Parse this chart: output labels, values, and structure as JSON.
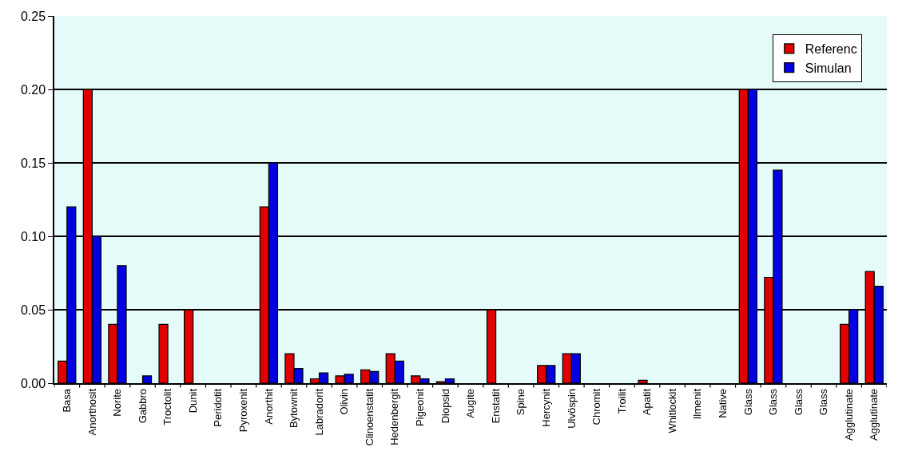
{
  "chart_data": {
    "type": "bar",
    "categories": [
      "Basa",
      "Anorthosit",
      "Norite",
      "Gabbro",
      "Troctolit",
      "Dunit",
      "Peridotit",
      "Pyroxenit",
      "Anorthit",
      "Bytownit",
      "Labradorit",
      "Olivin",
      "Clinoenstatit",
      "Hedenbergit",
      "Pigeonit",
      "Diopsid",
      "Augite",
      "Enstatit",
      "Spine",
      "Hercynit",
      "Ulvöspin",
      "Chromit",
      "Troilit",
      "Apatit",
      "Whitlockit",
      "Ilmenit",
      "Native",
      "Glass",
      "Glass",
      "Glass",
      "Glass",
      "Agglutinate",
      "Agglutinate"
    ],
    "series": [
      {
        "name": "Referenc",
        "color": "#e00000",
        "values": [
          0.015,
          0.2,
          0.04,
          null,
          0.04,
          0.05,
          null,
          null,
          0.12,
          0.02,
          0.003,
          0.005,
          0.009,
          0.02,
          0.005,
          0.001,
          null,
          0.05,
          null,
          0.012,
          0.02,
          null,
          null,
          0.002,
          null,
          null,
          null,
          0.2,
          0.072,
          null,
          null,
          0.04,
          0.076
        ]
      },
      {
        "name": "Simulan",
        "color": "#0000e0",
        "values": [
          0.12,
          0.1,
          0.08,
          0.005,
          null,
          null,
          null,
          null,
          0.15,
          0.01,
          0.007,
          0.006,
          0.008,
          0.015,
          0.003,
          0.003,
          null,
          null,
          null,
          0.012,
          0.02,
          null,
          null,
          null,
          null,
          null,
          null,
          0.2,
          0.145,
          null,
          null,
          0.05,
          0.066
        ]
      }
    ],
    "ylim": [
      0,
      0.25
    ],
    "yticks": [
      {
        "value": 0,
        "label": "0.00"
      },
      {
        "value": 0.05,
        "label": "0.05"
      },
      {
        "value": 0.1,
        "label": "0.10"
      },
      {
        "value": 0.15,
        "label": "0.15"
      },
      {
        "value": 0.2,
        "label": "0.20"
      },
      {
        "value": 0.25,
        "label": "0.25"
      }
    ],
    "grid": "y",
    "legend": "top right"
  }
}
